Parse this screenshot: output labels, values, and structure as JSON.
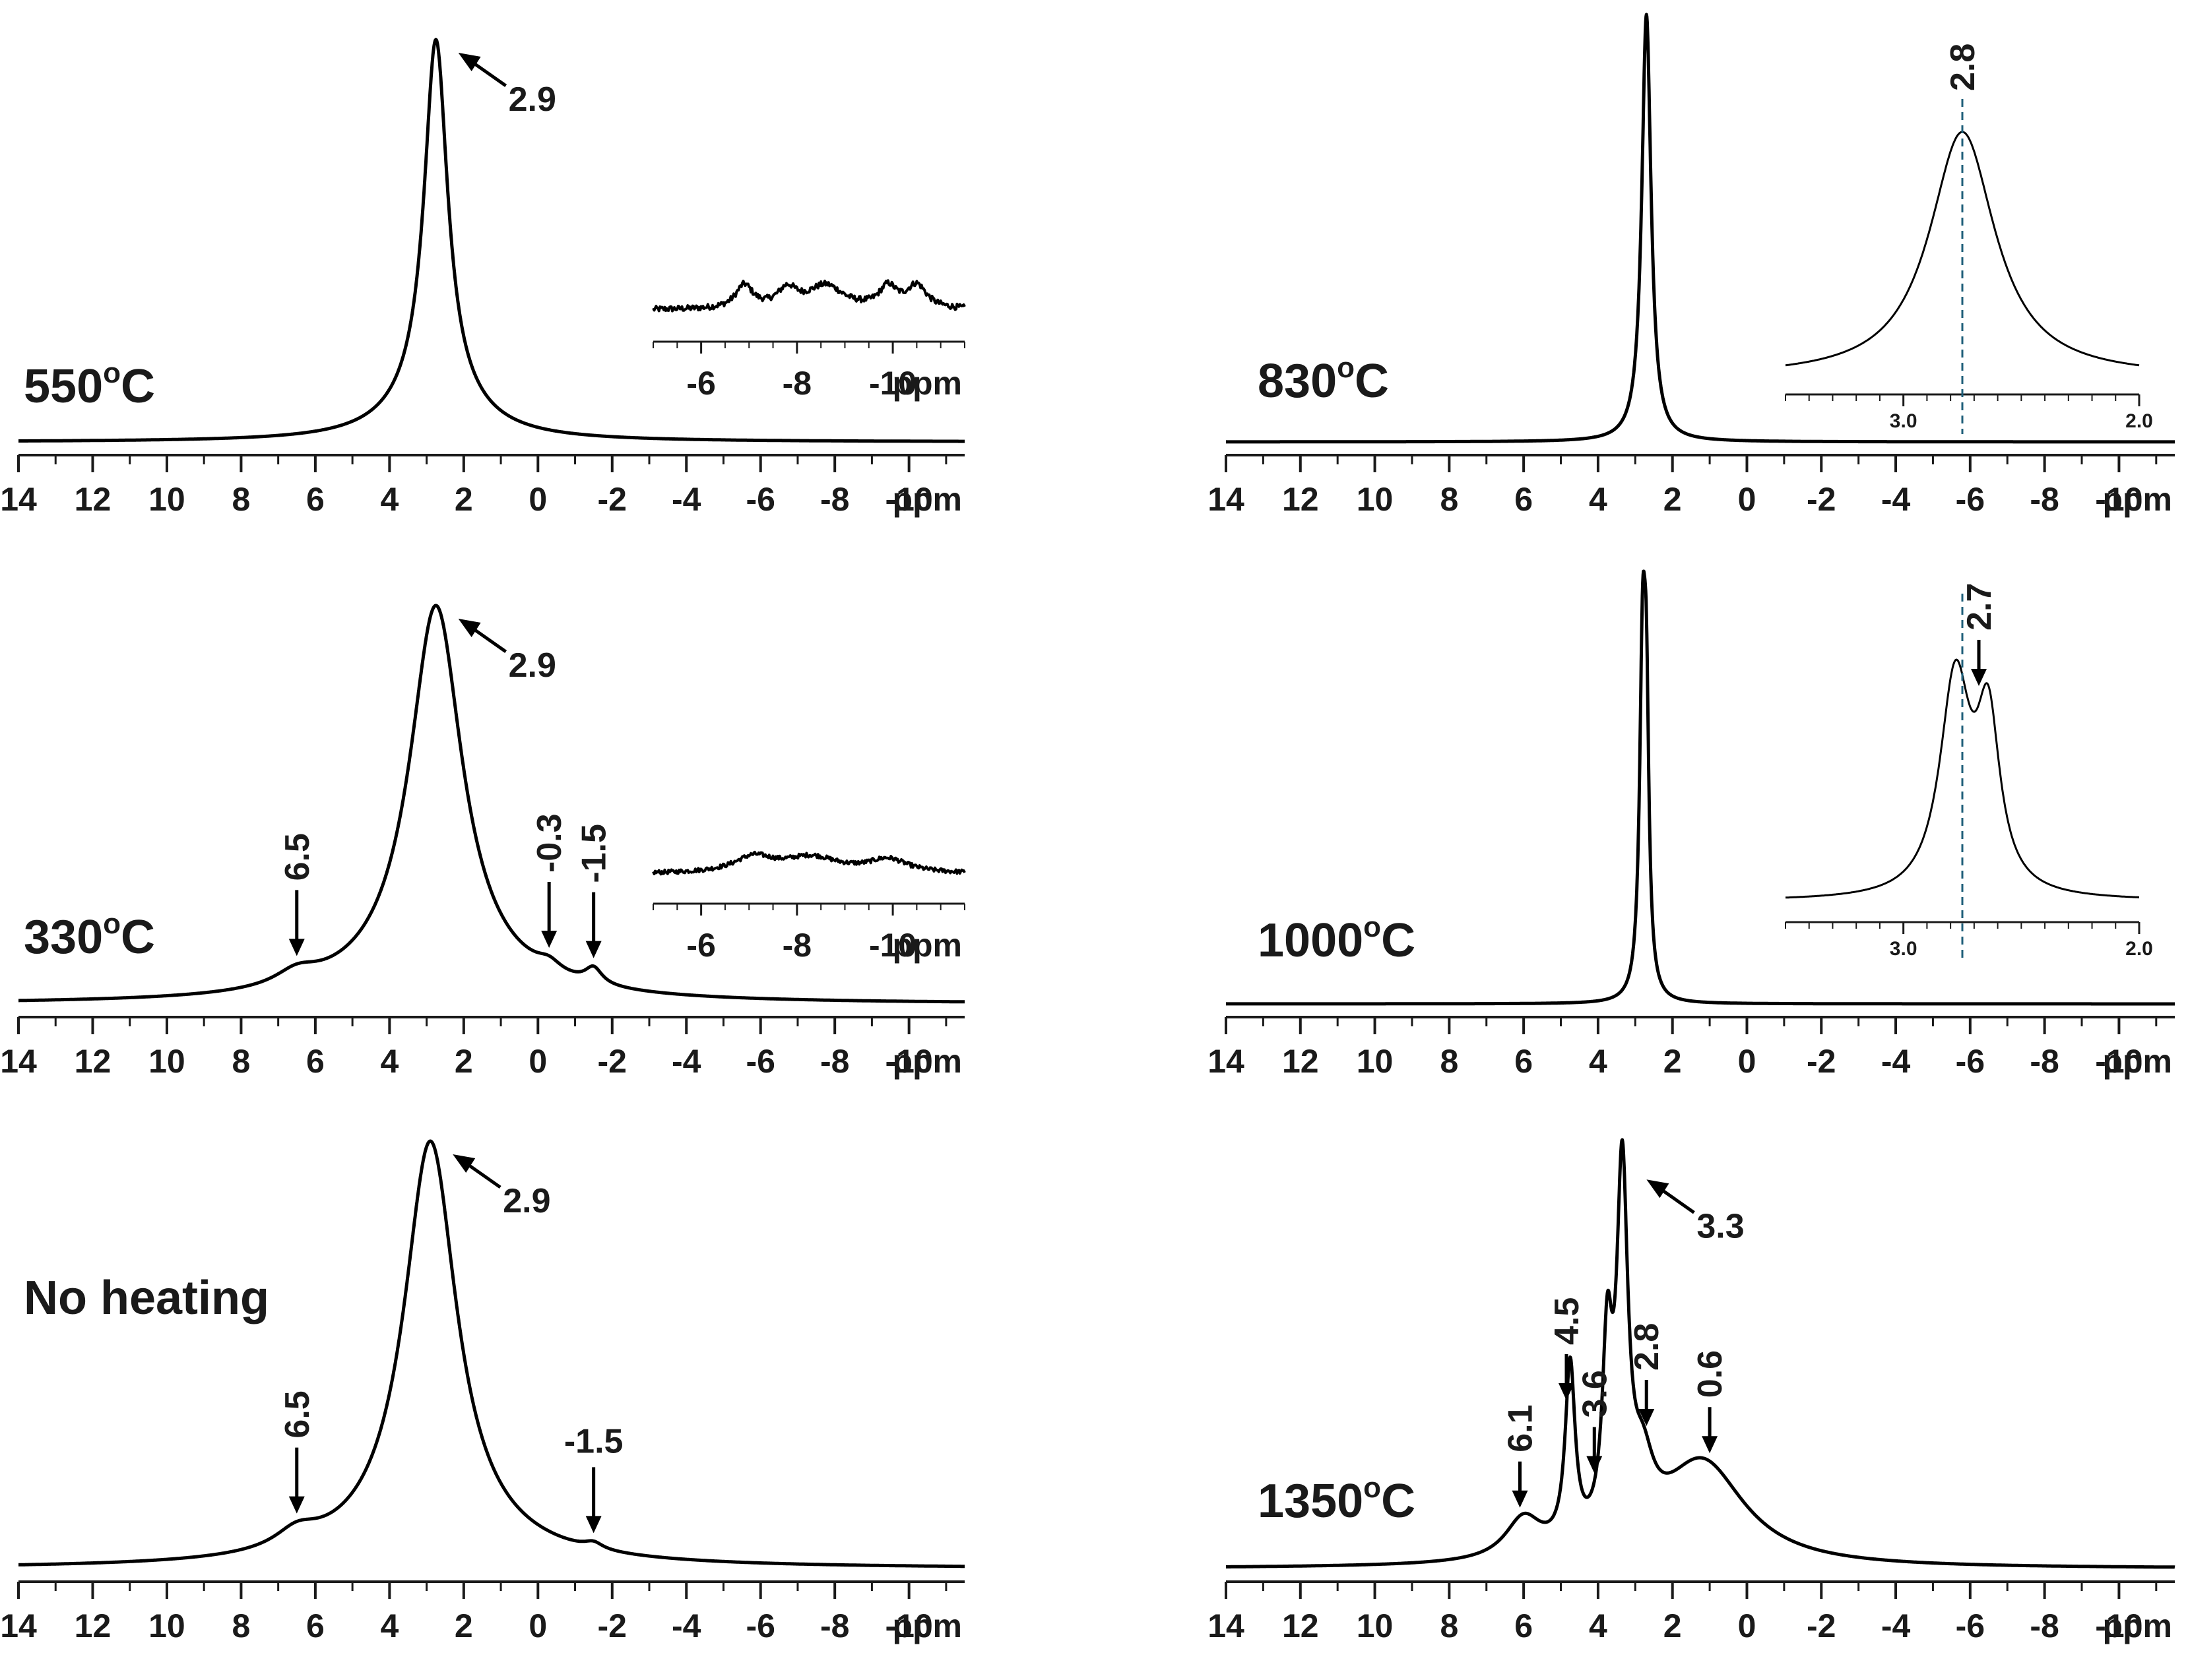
{
  "chart_data": {
    "type": "line",
    "xlabel": "ppm",
    "colors": {
      "trace": "#000000",
      "axis": "#1a1a1a",
      "marker_line": "#1f5f7a"
    },
    "panels": [
      {
        "id": "p550",
        "label_main": "550",
        "label_sup": "o",
        "label_unit": "C",
        "xlim": [
          14,
          -11.5
        ],
        "ticks": [
          14,
          12,
          10,
          8,
          6,
          4,
          2,
          0,
          -2,
          -4,
          -6,
          -8,
          -10
        ],
        "tick_labels": [
          "14",
          "12",
          "10",
          "8",
          "6",
          "4",
          "2",
          "0",
          "-2",
          "-4",
          "-6",
          "-8",
          "-10"
        ],
        "peaks": [
          {
            "c": 2.75,
            "h": 1.0,
            "w": 0.38
          },
          {
            "c": 2.75,
            "h": 0.12,
            "w": 1.3
          }
        ],
        "annotations": [
          {
            "text": "2.9",
            "x": 2.75,
            "style": "diag"
          }
        ],
        "inset": {
          "xlim": [
            -5,
            -11.5
          ],
          "ticks": [
            -6,
            -8,
            -10
          ],
          "tick_labels": [
            "-6",
            "-8",
            "-10"
          ],
          "unit": "ppm",
          "kind": "noisy",
          "peaks": [
            {
              "c": -6.9,
              "h": 0.5,
              "w": 0.22
            },
            {
              "c": -7.8,
              "h": 0.4,
              "w": 0.25
            },
            {
              "c": -8.6,
              "h": 0.5,
              "w": 0.45
            },
            {
              "c": -9.9,
              "h": 0.45,
              "w": 0.22
            },
            {
              "c": -10.5,
              "h": 0.5,
              "w": 0.25
            }
          ]
        }
      },
      {
        "id": "p330",
        "label_main": "330",
        "label_sup": "o",
        "label_unit": "C",
        "xlim": [
          14,
          -11.5
        ],
        "ticks": [
          14,
          12,
          10,
          8,
          6,
          4,
          2,
          0,
          -2,
          -4,
          -6,
          -8,
          -10
        ],
        "tick_labels": [
          "14",
          "12",
          "10",
          "8",
          "6",
          "4",
          "2",
          "0",
          "-2",
          "-4",
          "-6",
          "-8",
          "-10"
        ],
        "peaks": [
          {
            "c": 2.75,
            "h": 0.92,
            "w": 0.85
          },
          {
            "c": 2.75,
            "h": 0.08,
            "w": 2.2
          },
          {
            "c": 6.5,
            "h": 0.035,
            "w": 0.7
          },
          {
            "c": -0.3,
            "h": 0.025,
            "w": 0.4
          },
          {
            "c": -1.5,
            "h": 0.04,
            "w": 0.28
          }
        ],
        "annotations": [
          {
            "text": "2.9",
            "x": 2.75,
            "style": "diag"
          },
          {
            "text": "6.5",
            "x": 6.5,
            "style": "vert"
          },
          {
            "text": "-0.3",
            "x": -0.3,
            "style": "vert"
          },
          {
            "text": "-1.5",
            "x": -1.5,
            "style": "vert"
          }
        ],
        "inset": {
          "xlim": [
            -5,
            -11.5
          ],
          "ticks": [
            -6,
            -8,
            -10
          ],
          "tick_labels": [
            "-6",
            "-8",
            "-10"
          ],
          "unit": "ppm",
          "kind": "noisy",
          "peaks": [
            {
              "c": -7.1,
              "h": 0.35,
              "w": 0.5
            },
            {
              "c": -8.3,
              "h": 0.35,
              "w": 0.7
            },
            {
              "c": -9.9,
              "h": 0.3,
              "w": 0.5
            }
          ]
        }
      },
      {
        "id": "p0",
        "label_main": "No heating",
        "label_sup": "",
        "label_unit": "",
        "xlim": [
          14,
          -11.5
        ],
        "ticks": [
          14,
          12,
          10,
          8,
          6,
          4,
          2,
          0,
          -2,
          -4,
          -6,
          -8,
          -10
        ],
        "tick_labels": [
          "14",
          "12",
          "10",
          "8",
          "6",
          "4",
          "2",
          "0",
          "-2",
          "-4",
          "-6",
          "-8",
          "-10"
        ],
        "peaks": [
          {
            "c": 2.9,
            "h": 0.92,
            "w": 0.85
          },
          {
            "c": 2.9,
            "h": 0.08,
            "w": 2.2
          },
          {
            "c": 6.5,
            "h": 0.04,
            "w": 0.7
          },
          {
            "c": -1.5,
            "h": 0.015,
            "w": 0.3
          }
        ],
        "annotations": [
          {
            "text": "2.9",
            "x": 2.9,
            "style": "diag"
          },
          {
            "text": "6.5",
            "x": 6.5,
            "style": "vert"
          },
          {
            "text": "-1.5",
            "x": -1.5,
            "style": "vert_h"
          }
        ]
      },
      {
        "id": "p830",
        "label_main": "830",
        "label_sup": "o",
        "label_unit": "C",
        "xlim": [
          14,
          -11.5
        ],
        "ticks": [
          14,
          12,
          10,
          8,
          6,
          4,
          2,
          0,
          -2,
          -4,
          -6,
          -8,
          -10
        ],
        "tick_labels": [
          "14",
          "12",
          "10",
          "8",
          "6",
          "4",
          "2",
          "0",
          "-2",
          "-4",
          "-6",
          "-8",
          "-10"
        ],
        "peaks": [
          {
            "c": 2.7,
            "h": 1.0,
            "w": 0.15
          }
        ],
        "annotations": [],
        "inset": {
          "xlim": [
            3.5,
            2.0
          ],
          "ticks": [
            3.0,
            2.0
          ],
          "tick_labels": [
            "3.0",
            "2.0"
          ],
          "unit": "",
          "kind": "smooth",
          "marker": {
            "x": 2.75,
            "text": "2.8"
          },
          "peaks": [
            {
              "c": 2.75,
              "h": 1.0,
              "w": 0.17
            }
          ]
        }
      },
      {
        "id": "p1000",
        "label_main": "1000",
        "label_sup": "o",
        "label_unit": "C",
        "xlim": [
          14,
          -11.5
        ],
        "ticks": [
          14,
          12,
          10,
          8,
          6,
          4,
          2,
          0,
          -2,
          -4,
          -6,
          -8,
          -10
        ],
        "tick_labels": [
          "14",
          "12",
          "10",
          "8",
          "6",
          "4",
          "2",
          "0",
          "-2",
          "-4",
          "-6",
          "-8",
          "-10"
        ],
        "peaks": [
          {
            "c": 2.8,
            "h": 0.9,
            "w": 0.1
          },
          {
            "c": 2.7,
            "h": 0.6,
            "w": 0.08
          }
        ],
        "annotations": [],
        "inset": {
          "xlim": [
            3.5,
            2.0
          ],
          "ticks": [
            3.0,
            2.0
          ],
          "tick_labels": [
            "3.0",
            "2.0"
          ],
          "unit": "",
          "kind": "smooth",
          "marker": {
            "x": 2.75,
            "text": ""
          },
          "arrow": {
            "x": 2.68,
            "text": "2.7"
          },
          "peaks": [
            {
              "c": 2.78,
              "h": 0.82,
              "w": 0.08
            },
            {
              "c": 2.64,
              "h": 0.62,
              "w": 0.06
            }
          ]
        }
      },
      {
        "id": "p1350",
        "label_main": "1350",
        "label_sup": "o",
        "label_unit": "C",
        "xlim": [
          14,
          -11.5
        ],
        "ticks": [
          14,
          12,
          10,
          8,
          6,
          4,
          2,
          0,
          -2,
          -4,
          -6,
          -8,
          -10
        ],
        "tick_labels": [
          "14",
          "12",
          "10",
          "8",
          "6",
          "4",
          "2",
          "0",
          "-2",
          "-4",
          "-6",
          "-8",
          "-10"
        ],
        "peaks": [
          {
            "c": 3.35,
            "h": 0.95,
            "w": 0.18
          },
          {
            "c": 3.75,
            "h": 0.48,
            "w": 0.16
          },
          {
            "c": 4.75,
            "h": 0.48,
            "w": 0.16
          },
          {
            "c": 2.8,
            "h": 0.16,
            "w": 0.35
          },
          {
            "c": 1.2,
            "h": 0.28,
            "w": 1.4
          },
          {
            "c": 6.0,
            "h": 0.11,
            "w": 0.6
          }
        ],
        "annotations": [
          {
            "text": "3.3",
            "x": 3.3,
            "style": "diag"
          },
          {
            "text": "3.6",
            "x": 4.1,
            "style": "vert_s"
          },
          {
            "text": "4.5",
            "x": 4.85,
            "style": "vert_s"
          },
          {
            "text": "2.8",
            "x": 2.7,
            "style": "vert_s"
          },
          {
            "text": "0.6",
            "x": 1.0,
            "style": "vert_s"
          },
          {
            "text": "6.1",
            "x": 6.1,
            "style": "vert_s"
          }
        ]
      }
    ]
  }
}
